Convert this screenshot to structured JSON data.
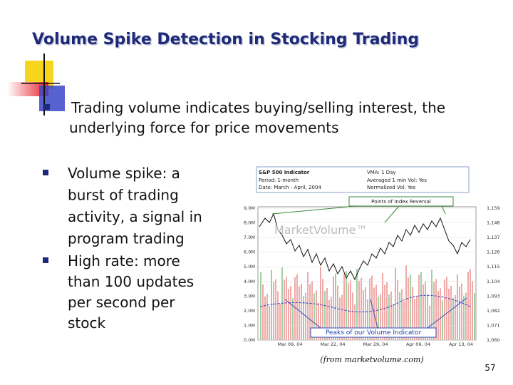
{
  "header": {
    "title": "Volume Spike Detection in Stocking Trading"
  },
  "bullets": [
    {
      "lines": [
        "Trading volume indicates buying/selling interest, the",
        "underlying force for price movements"
      ]
    },
    {
      "lines": [
        "Volume spike: a",
        "burst of trading",
        "activity, a signal in",
        "program trading"
      ]
    },
    {
      "lines": [
        "High rate: more",
        "than 100 updates",
        "per second per",
        "stock"
      ]
    }
  ],
  "figure": {
    "info_left": [
      "S&P 500 Indicator",
      "Period: 1-month",
      "Date: March - April, 2004"
    ],
    "info_right": [
      "VMA: 1 Day",
      "Averaged 1 min Vol: Yes",
      "Normalized Vol: Yes"
    ],
    "watermark": "MarketVolume™",
    "top_callout": "Points of Index Reversal",
    "bottom_callout": "Peaks of our Volume Indicator",
    "left_axis": [
      "9.0M",
      "8.0M",
      "7.0M",
      "6.0M",
      "5.0M",
      "4.0M",
      "3.0M",
      "2.0M",
      "1.0M",
      "0.0M"
    ],
    "right_axis": [
      "1,159",
      "1,148",
      "1,137",
      "1,126",
      "1,115",
      "1,104",
      "1,093",
      "1,082",
      "1,071",
      "1,060"
    ],
    "x_axis": [
      "Mar 09, 04",
      "Mar 22, 04",
      "Mar 29, 04",
      "Apr 06, 04",
      "Apr 13, 04"
    ]
  },
  "caption": "(from marketvolume.com)",
  "page_number": "57"
}
